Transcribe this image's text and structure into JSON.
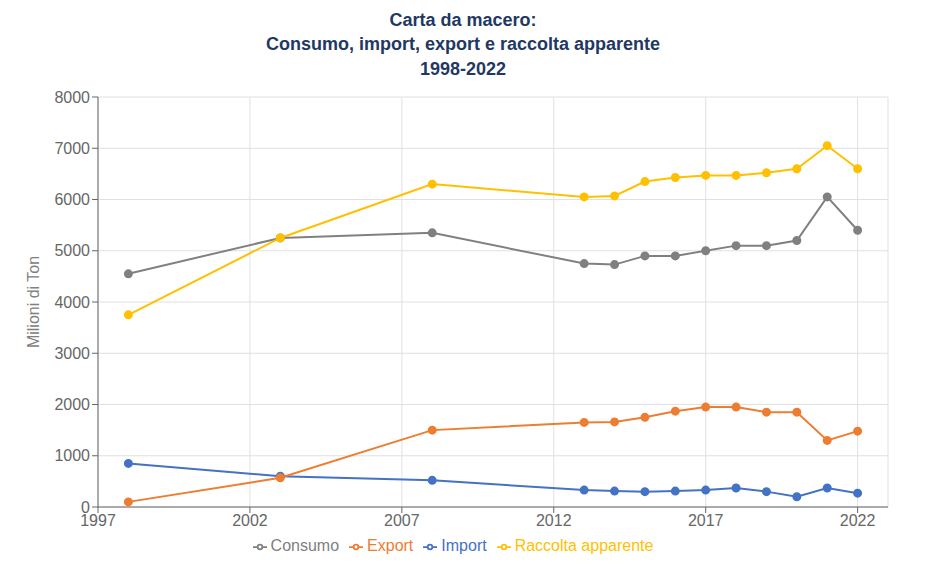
{
  "chart_data": {
    "type": "line",
    "title": "Carta da macero:\nConsumo, import, export e raccolta apparente\n1998-2022",
    "ylabel": "Milioni di Ton",
    "x": [
      1998,
      2003,
      2008,
      2013,
      2014,
      2015,
      2016,
      2017,
      2018,
      2019,
      2020,
      2021,
      2022
    ],
    "series": [
      {
        "name": "Import",
        "color": "#4472C4",
        "marker": "circle",
        "values": [
          850,
          600,
          520,
          330,
          310,
          300,
          310,
          330,
          370,
          300,
          200,
          370,
          270
        ]
      },
      {
        "name": "Export",
        "color": "#ED7D31",
        "marker": "circle",
        "values": [
          100,
          570,
          1500,
          1650,
          1660,
          1750,
          1870,
          1950,
          1950,
          1850,
          1850,
          1300,
          1480
        ]
      },
      {
        "name": "Consumo",
        "color": "#808080",
        "marker": "circle",
        "values": [
          4550,
          5250,
          5350,
          4750,
          4730,
          4900,
          4900,
          5000,
          5100,
          5100,
          5200,
          6050,
          5400
        ]
      },
      {
        "name": "Raccolta apparente",
        "color": "#FFC000",
        "marker": "circle",
        "values": [
          3750,
          5250,
          6300,
          6050,
          6070,
          6350,
          6430,
          6470,
          6470,
          6520,
          6600,
          7050,
          6600
        ]
      }
    ],
    "xlim": [
      1997,
      2023
    ],
    "xticks": [
      1997,
      2002,
      2007,
      2012,
      2017,
      2022
    ],
    "ylim": [
      0,
      8000
    ],
    "yticks": [
      0,
      1000,
      2000,
      3000,
      4000,
      5000,
      6000,
      7000,
      8000
    ],
    "grid": true,
    "legend": "bottom"
  }
}
